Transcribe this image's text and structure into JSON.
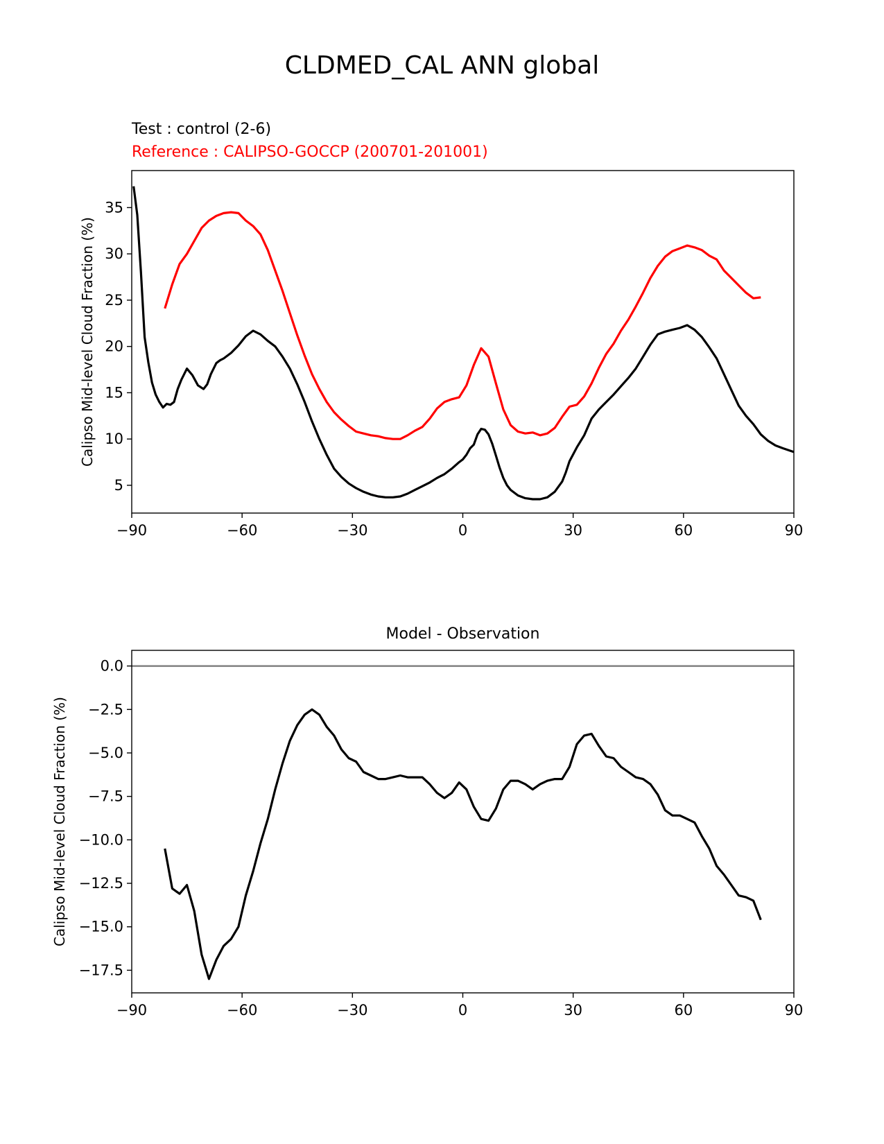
{
  "figure": {
    "title": "CLDMED_CAL ANN global",
    "test_label": "Test : control (2-6)",
    "reference_label": "Reference : CALIPSO-GOCCP (200701-201001)",
    "colors": {
      "test": "#000000",
      "reference": "#ff0000",
      "zero_line": "#808080"
    }
  },
  "chart_data": [
    {
      "type": "line",
      "title": "",
      "xlabel": "",
      "ylabel": "Calipso Mid-level Cloud Fraction (%)",
      "xlim": [
        -90,
        90
      ],
      "ylim": [
        2,
        39
      ],
      "xticks": [
        -90,
        -60,
        -30,
        0,
        30,
        60,
        90
      ],
      "xtick_labels": [
        "−90",
        "−60",
        "−30",
        "0",
        "30",
        "60",
        "90"
      ],
      "yticks": [
        5,
        10,
        15,
        20,
        25,
        30,
        35
      ],
      "ytick_labels": [
        "5",
        "10",
        "15",
        "20",
        "25",
        "30",
        "35"
      ],
      "series": [
        {
          "name": "Test : control (2-6)",
          "color": "#000000",
          "x": [
            -89.5,
            -88.5,
            -87.5,
            -86.5,
            -85.5,
            -84.5,
            -83.5,
            -82.5,
            -81.5,
            -80.5,
            -79.5,
            -78.5,
            -77.5,
            -76.5,
            -75,
            -73.5,
            -72,
            -70.5,
            -69.5,
            -68.5,
            -67,
            -66,
            -65,
            -63,
            -61,
            -59,
            -57,
            -55,
            -53,
            -51,
            -49,
            -47,
            -45,
            -43,
            -41,
            -39,
            -37,
            -35,
            -33,
            -31,
            -29,
            -27,
            -25,
            -23,
            -21,
            -19,
            -17,
            -15,
            -13,
            -11,
            -9,
            -7,
            -5,
            -3,
            -1,
            0,
            1,
            2,
            3,
            4,
            5,
            6,
            7,
            8,
            9,
            10,
            11,
            12,
            13,
            15,
            17,
            19,
            21,
            23,
            25,
            27,
            28,
            29,
            31,
            33,
            35,
            37,
            39,
            41,
            43,
            45,
            47,
            49,
            51,
            53,
            55,
            57,
            59,
            61,
            63,
            65,
            67,
            69,
            71,
            73,
            75,
            77,
            79,
            81,
            83,
            85,
            87,
            90
          ],
          "values": [
            37.3,
            34.2,
            28,
            21,
            18.3,
            16.1,
            14.8,
            14,
            13.4,
            13.8,
            13.7,
            14,
            15.4,
            16.4,
            17.6,
            16.9,
            15.8,
            15.4,
            15.9,
            17,
            18.2,
            18.5,
            18.7,
            19.3,
            20.1,
            21.1,
            21.7,
            21.3,
            20.6,
            20,
            18.9,
            17.6,
            15.9,
            14,
            11.9,
            10,
            8.3,
            6.8,
            5.9,
            5.2,
            4.7,
            4.3,
            4,
            3.8,
            3.7,
            3.7,
            3.8,
            4.1,
            4.5,
            4.9,
            5.3,
            5.8,
            6.2,
            6.8,
            7.5,
            7.8,
            8.3,
            9,
            9.4,
            10.5,
            11.1,
            11,
            10.5,
            9.5,
            8.2,
            6.9,
            5.8,
            5,
            4.5,
            3.9,
            3.6,
            3.5,
            3.5,
            3.7,
            4.3,
            5.4,
            6.4,
            7.6,
            9.1,
            10.4,
            12.2,
            13.2,
            14,
            14.8,
            15.7,
            16.6,
            17.6,
            18.9,
            20.2,
            21.3,
            21.6,
            21.8,
            22,
            22.3,
            21.8,
            21,
            19.9,
            18.7,
            17,
            15.3,
            13.6,
            12.5,
            11.6,
            10.5,
            9.8,
            9.3,
            9,
            8.6
          ]
        },
        {
          "name": "Reference : CALIPSO-GOCCP (200701-201001)",
          "color": "#ff0000",
          "x": [
            -81,
            -79,
            -77,
            -75,
            -73,
            -71,
            -69,
            -67,
            -65,
            -63,
            -61,
            -59,
            -57,
            -55,
            -53,
            -51,
            -49,
            -47,
            -45,
            -43,
            -41,
            -39,
            -37,
            -35,
            -33,
            -31,
            -29,
            -27,
            -25,
            -23,
            -21,
            -19,
            -17,
            -15,
            -13,
            -11,
            -9,
            -7,
            -5,
            -3,
            -1,
            1,
            3,
            5,
            7,
            9,
            11,
            13,
            15,
            17,
            19,
            21,
            23,
            25,
            27,
            29,
            31,
            33,
            35,
            37,
            39,
            41,
            43,
            45,
            47,
            49,
            51,
            53,
            55,
            57,
            59,
            61,
            63,
            65,
            67,
            69,
            71,
            73,
            75,
            77,
            79,
            81
          ],
          "values": [
            24.1,
            26.7,
            28.9,
            30,
            31.4,
            32.8,
            33.6,
            34.1,
            34.4,
            34.5,
            34.4,
            33.6,
            33,
            32.1,
            30.4,
            28.2,
            26,
            23.6,
            21.2,
            19,
            17,
            15.4,
            14,
            12.9,
            12.1,
            11.4,
            10.8,
            10.6,
            10.4,
            10.3,
            10.1,
            10,
            10,
            10.4,
            10.9,
            11.3,
            12.2,
            13.3,
            14,
            14.3,
            14.5,
            15.8,
            18,
            19.8,
            18.9,
            16,
            13.2,
            11.5,
            10.8,
            10.6,
            10.7,
            10.4,
            10.6,
            11.2,
            12.4,
            13.5,
            13.7,
            14.6,
            16,
            17.7,
            19.2,
            20.3,
            21.7,
            22.9,
            24.3,
            25.8,
            27.4,
            28.7,
            29.7,
            30.3,
            30.6,
            30.9,
            30.7,
            30.4,
            29.8,
            29.4,
            28.2,
            27.4,
            26.6,
            25.8,
            25.2,
            25.3
          ]
        }
      ]
    },
    {
      "type": "line",
      "title": "Model - Observation",
      "xlabel": "",
      "ylabel": "Calipso Mid-level Cloud Fraction (%)",
      "xlim": [
        -90,
        90
      ],
      "ylim": [
        -18.8,
        0.9
      ],
      "xticks": [
        -90,
        -60,
        -30,
        0,
        30,
        60,
        90
      ],
      "xtick_labels": [
        "−90",
        "−60",
        "−30",
        "0",
        "30",
        "60",
        "90"
      ],
      "yticks": [
        0,
        -2.5,
        -5,
        -7.5,
        -10,
        -12.5,
        -15,
        -17.5
      ],
      "ytick_labels": [
        "0.0",
        "−2.5",
        "−5.0",
        "−7.5",
        "−10.0",
        "−12.5",
        "−15.0",
        "−17.5"
      ],
      "reference_line": 0,
      "series": [
        {
          "name": "Model - Observation",
          "color": "#000000",
          "x": [
            -81,
            -79,
            -77,
            -75,
            -73,
            -71,
            -69,
            -67,
            -65,
            -63,
            -61,
            -59,
            -57,
            -55,
            -53,
            -51,
            -49,
            -47,
            -45,
            -43,
            -41,
            -39,
            -37,
            -35,
            -33,
            -31,
            -29,
            -27,
            -25,
            -23,
            -21,
            -19,
            -17,
            -15,
            -13,
            -11,
            -9,
            -7,
            -5,
            -3,
            -1,
            1,
            3,
            5,
            7,
            9,
            11,
            13,
            15,
            17,
            19,
            21,
            23,
            25,
            27,
            29,
            31,
            33,
            35,
            37,
            39,
            41,
            43,
            45,
            47,
            49,
            51,
            53,
            55,
            57,
            59,
            61,
            63,
            65,
            67,
            69,
            71,
            73,
            75,
            77,
            79,
            81
          ],
          "values": [
            -10.5,
            -12.8,
            -13.1,
            -12.6,
            -14.1,
            -16.6,
            -18,
            -16.9,
            -16.1,
            -15.7,
            -15,
            -13.2,
            -11.8,
            -10.2,
            -8.8,
            -7.1,
            -5.6,
            -4.3,
            -3.4,
            -2.8,
            -2.5,
            -2.8,
            -3.5,
            -4,
            -4.8,
            -5.3,
            -5.5,
            -6.1,
            -6.3,
            -6.5,
            -6.5,
            -6.4,
            -6.3,
            -6.4,
            -6.4,
            -6.4,
            -6.8,
            -7.3,
            -7.6,
            -7.3,
            -6.7,
            -7.1,
            -8.1,
            -8.8,
            -8.9,
            -8.2,
            -7.1,
            -6.6,
            -6.6,
            -6.8,
            -7.1,
            -6.8,
            -6.6,
            -6.5,
            -6.5,
            -5.8,
            -4.5,
            -4,
            -3.9,
            -4.6,
            -5.2,
            -5.3,
            -5.8,
            -6.1,
            -6.4,
            -6.5,
            -6.8,
            -7.4,
            -8.3,
            -8.6,
            -8.6,
            -8.8,
            -9,
            -9.8,
            -10.5,
            -11.5,
            -12,
            -12.6,
            -13.2,
            -13.3,
            -13.5,
            -14.6
          ]
        }
      ]
    }
  ]
}
